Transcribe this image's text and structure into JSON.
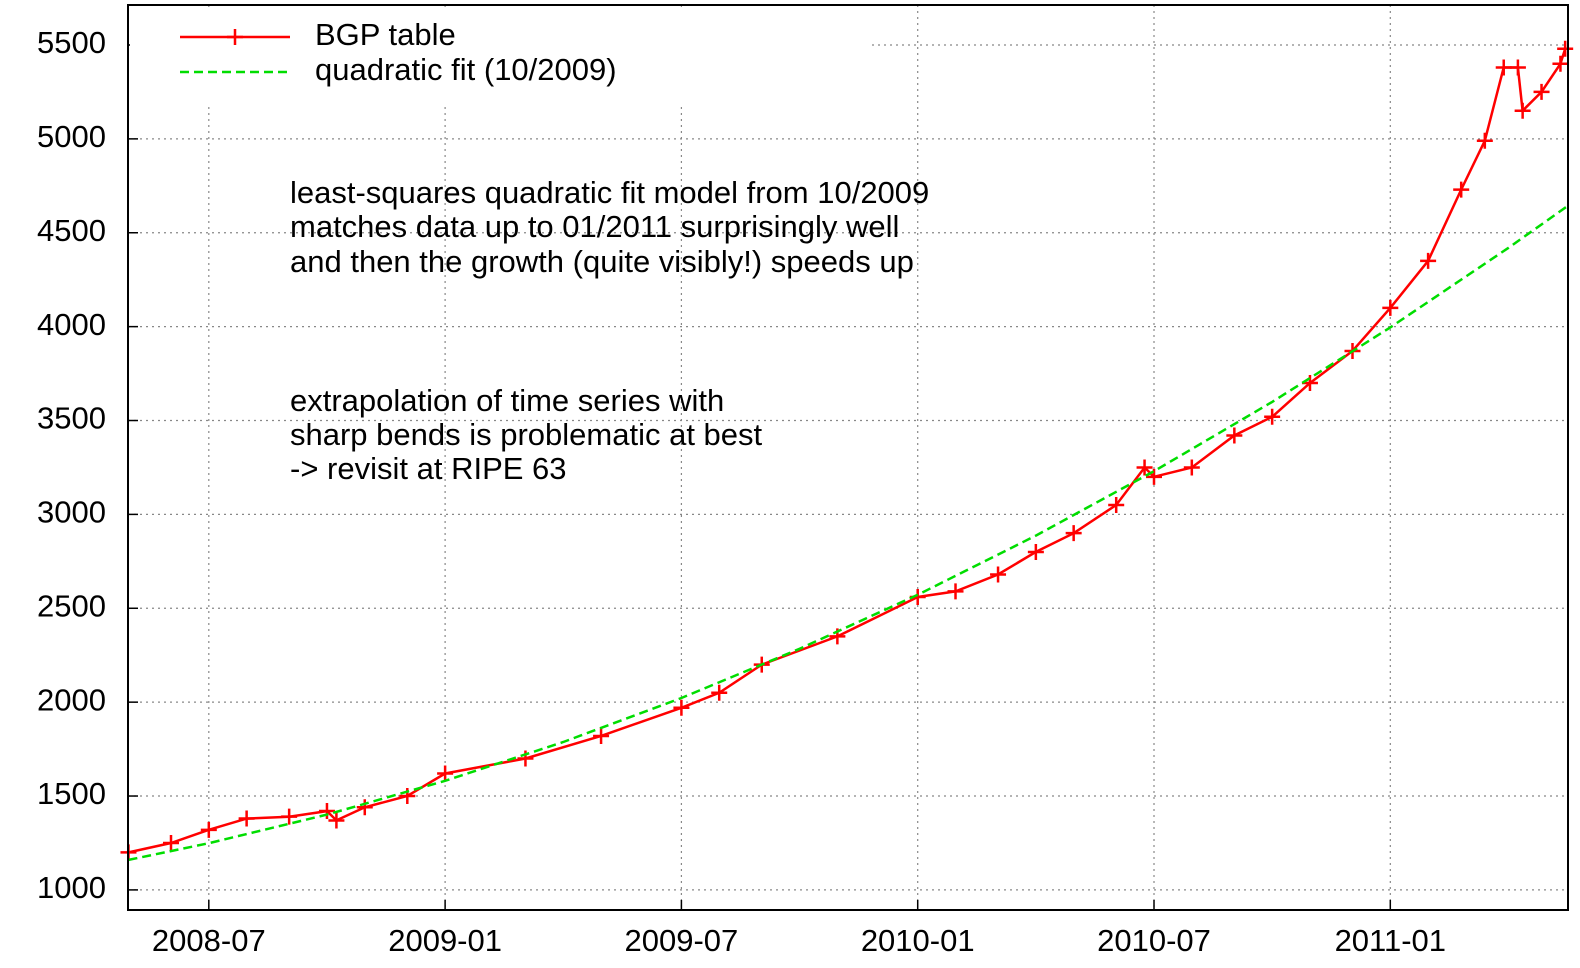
{
  "chart_data": {
    "type": "line",
    "annotations": [
      "least-squares quadratic fit model from 10/2009",
      "matches data up to 01/2011 surprisingly well",
      "and then the growth (quite visibly!) speeds up",
      "extrapolation of time series with",
      "sharp bends is problematic at best",
      "-> revisit at RIPE 63"
    ],
    "series": [
      {
        "name": "BGP table",
        "color": "#ff0000",
        "style": "linespoints",
        "x": [
          2008.33,
          2008.42,
          2008.5,
          2008.58,
          2008.67,
          2008.75,
          2008.77,
          2008.83,
          2008.92,
          2009.0,
          2009.17,
          2009.33,
          2009.5,
          2009.58,
          2009.67,
          2009.83,
          2010.0,
          2010.08,
          2010.17,
          2010.25,
          2010.33,
          2010.42,
          2010.48,
          2010.5,
          2010.58,
          2010.67,
          2010.75,
          2010.83,
          2010.92,
          2011.0,
          2011.08,
          2011.15,
          2011.2,
          2011.24,
          2011.27,
          2011.28,
          2011.32,
          2011.36,
          2011.37
        ],
        "values": [
          1200,
          1250,
          1320,
          1380,
          1390,
          1420,
          1370,
          1440,
          1500,
          1620,
          1700,
          1820,
          1970,
          2050,
          2200,
          2350,
          2560,
          2590,
          2680,
          2800,
          2900,
          3050,
          3250,
          3200,
          3250,
          3420,
          3520,
          3700,
          3870,
          4100,
          4350,
          4730,
          4990,
          5380,
          5380,
          5150,
          5250,
          5400,
          5480
        ]
      },
      {
        "name": "quadratic fit (10/2009)",
        "color": "#00dd00",
        "style": "dashed",
        "x": [
          2008.33,
          2008.5,
          2008.75,
          2009.0,
          2009.25,
          2009.5,
          2009.75,
          2010.0,
          2010.25,
          2010.5,
          2010.75,
          2011.0,
          2011.25,
          2011.376
        ],
        "values": [
          1160,
          1249,
          1401,
          1581,
          1788,
          2022,
          2284,
          2572,
          2887,
          3230,
          3599,
          3996,
          4420,
          4644
        ]
      }
    ],
    "xlim": [
      2008.329,
      2011.376
    ],
    "xticks": [
      {
        "value": 2008.5,
        "label": "2008-07"
      },
      {
        "value": 2009.0,
        "label": "2009-01"
      },
      {
        "value": 2009.5,
        "label": "2009-07"
      },
      {
        "value": 2010.0,
        "label": "2010-01"
      },
      {
        "value": 2010.5,
        "label": "2010-07"
      },
      {
        "value": 2011.0,
        "label": "2011-01"
      }
    ],
    "ylim": [
      893,
      5713
    ],
    "yticks": [
      1000,
      1500,
      2000,
      2500,
      3000,
      3500,
      4000,
      4500,
      5000,
      5500
    ],
    "grid": true,
    "legend": "top-left"
  }
}
